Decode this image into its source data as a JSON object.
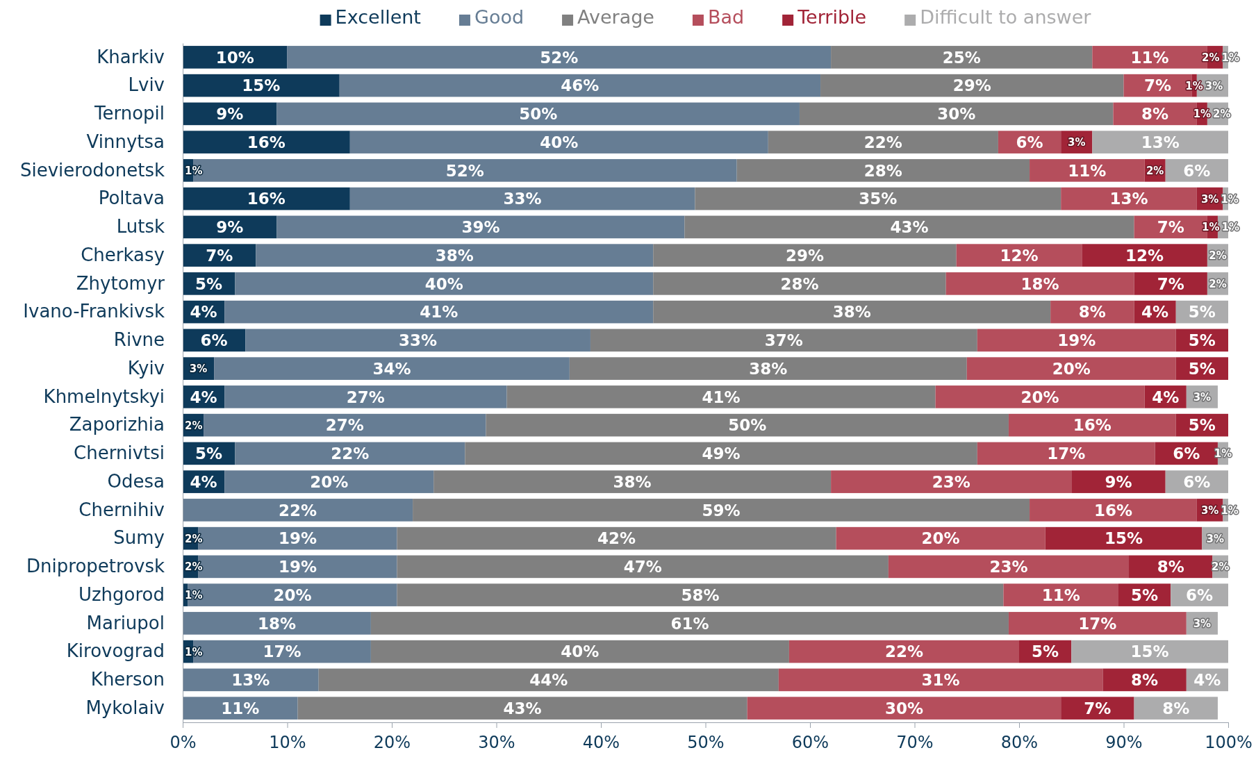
{
  "chart_data": {
    "type": "bar",
    "orientation": "horizontal",
    "stacked": true,
    "legend": "top",
    "grid": false,
    "categories": [
      "Kharkiv",
      "Lviv",
      "Ternopil",
      "Vinnytsa",
      "Sievierodonetsk",
      "Poltava",
      "Lutsk",
      "Cherkasy",
      "Zhytomyr",
      "Ivano-Frankivsk",
      "Rivne",
      "Kyiv",
      "Khmelnytskyi",
      "Zaporizhia",
      "Chernivtsi",
      "Odesa",
      "Chernihiv",
      "Sumy",
      "Dnipropetrovsk",
      "Uzhgorod",
      "Mariupol",
      "Kirovograd",
      "Kherson",
      "Mykolaiv"
    ],
    "xlim": [
      0,
      100
    ],
    "xticks": [
      {
        "value": 0,
        "label": "0%"
      },
      {
        "value": 10,
        "label": "10%"
      },
      {
        "value": 20,
        "label": "20%"
      },
      {
        "value": 30,
        "label": "30%"
      },
      {
        "value": 40,
        "label": "40%"
      },
      {
        "value": 50,
        "label": "50%"
      },
      {
        "value": 60,
        "label": "60%"
      },
      {
        "value": 70,
        "label": "70%"
      },
      {
        "value": 80,
        "label": "80%"
      },
      {
        "value": 90,
        "label": "90%"
      },
      {
        "value": 100,
        "label": "100%"
      }
    ],
    "series": [
      {
        "name": "Excellent",
        "color": "#0e3a5a",
        "values": [
          10,
          15,
          9,
          16,
          1,
          16,
          9,
          7,
          5,
          4,
          6,
          3,
          4,
          2,
          5,
          4,
          null,
          1.5,
          1.5,
          0.5,
          null,
          1,
          null,
          null
        ],
        "value_labels": [
          "10%",
          "15%",
          "9%",
          "16%",
          "1%",
          "16%",
          "9%",
          "7%",
          "5%",
          "4%",
          "6%",
          "3%",
          "4%",
          "2%",
          "5%",
          "4%",
          null,
          "2%",
          "2%",
          "1%",
          null,
          "1%",
          null,
          null
        ]
      },
      {
        "name": "Good",
        "color": "#667d94",
        "values": [
          52,
          46,
          50,
          40,
          52,
          33,
          39,
          38,
          40,
          41,
          33,
          34,
          27,
          27,
          22,
          20,
          22,
          19,
          19,
          20,
          18,
          17,
          13,
          11
        ],
        "value_labels": [
          "52%",
          "46%",
          "50%",
          "40%",
          "52%",
          "33%",
          "39%",
          "38%",
          "40%",
          "41%",
          "33%",
          "34%",
          "27%",
          "27%",
          "22%",
          "20%",
          "22%",
          "19%",
          "19%",
          "20%",
          "18%",
          "17%",
          "13%",
          "11%"
        ]
      },
      {
        "name": "Average",
        "color": "#808080",
        "values": [
          25,
          29,
          30,
          22,
          28,
          35,
          43,
          29,
          28,
          38,
          37,
          38,
          41,
          50,
          49,
          38,
          59,
          42,
          47,
          58,
          61,
          40,
          44,
          43
        ],
        "value_labels": [
          "25%",
          "29%",
          "30%",
          "22%",
          "28%",
          "35%",
          "43%",
          "29%",
          "28%",
          "38%",
          "37%",
          "38%",
          "41%",
          "50%",
          "49%",
          "38%",
          "59%",
          "42%",
          "47%",
          "58%",
          "61%",
          "40%",
          "44%",
          "43%"
        ]
      },
      {
        "name": "Bad",
        "color": "#b54e5c",
        "values": [
          11,
          6.5,
          8,
          6,
          11,
          13,
          7,
          12,
          18,
          8,
          19,
          20,
          20,
          16,
          17,
          23,
          16,
          20,
          23,
          11,
          17,
          22,
          31,
          30
        ],
        "value_labels": [
          "11%",
          "7%",
          "8%",
          "6%",
          "11%",
          "13%",
          "7%",
          "12%",
          "18%",
          "8%",
          "19%",
          "20%",
          "20%",
          "16%",
          "17%",
          "23%",
          "16%",
          "20%",
          "23%",
          "11%",
          "17%",
          "22%",
          "31%",
          "30%"
        ]
      },
      {
        "name": "Terrible",
        "color": "#a12437",
        "values": [
          1.5,
          0.5,
          1,
          3,
          2,
          2.5,
          1,
          12,
          7,
          4,
          5,
          5,
          4,
          5,
          6,
          9,
          2.5,
          15,
          8,
          5,
          null,
          5,
          8,
          7
        ],
        "value_labels": [
          "2%",
          "1%",
          "1%",
          "3%",
          "2%",
          "3%",
          "1%",
          "12%",
          "7%",
          "4%",
          "5%",
          "5%",
          "4%",
          "5%",
          "6%",
          "9%",
          "3%",
          "15%",
          "8%",
          "5%",
          null,
          "5%",
          "8%",
          "7%"
        ]
      },
      {
        "name": "Difficult to answer",
        "color": "#acacad",
        "values": [
          0.5,
          3,
          2,
          13,
          6,
          0.5,
          1,
          2,
          2,
          5,
          null,
          null,
          3,
          null,
          1,
          6,
          0.5,
          2.5,
          1.5,
          5.5,
          3,
          15,
          4,
          8
        ],
        "value_labels": [
          "1%",
          "3%",
          "2%",
          "13%",
          "6%",
          "1%",
          "1%",
          "2%",
          "2%",
          "5%",
          null,
          null,
          "3%",
          null,
          "1%",
          "6%",
          "1%",
          "3%",
          "2%",
          "6%",
          "3%",
          "15%",
          "4%",
          "8%"
        ]
      }
    ]
  }
}
